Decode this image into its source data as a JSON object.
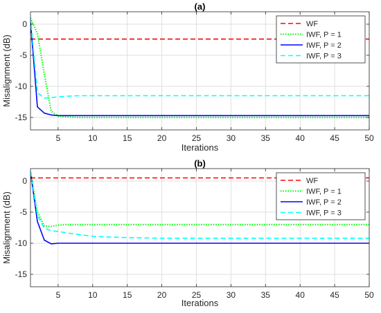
{
  "chart_data": [
    {
      "type": "line",
      "title": "(a)",
      "xlabel": "Iterations",
      "ylabel": "Misalignment (dB)",
      "xlim": [
        1,
        50
      ],
      "ylim": [
        -17,
        2
      ],
      "xticks": [
        5,
        10,
        15,
        20,
        25,
        30,
        35,
        40,
        45,
        50
      ],
      "yticks": [
        0,
        -5,
        -10,
        -15
      ],
      "grid": true,
      "legend_position": "top-right",
      "series": [
        {
          "name": "WF",
          "color": "#ff0000",
          "style": "dashed",
          "x": [
            1,
            50
          ],
          "y": [
            -2.4,
            -2.4
          ]
        },
        {
          "name": "IWF, P = 1",
          "color": "#00ff00",
          "style": "dotted",
          "x": [
            1,
            2,
            3,
            4,
            5,
            6,
            8,
            10,
            20,
            30,
            40,
            50
          ],
          "y": [
            1.0,
            -1.5,
            -8.0,
            -14.0,
            -14.8,
            -14.9,
            -15.0,
            -15.0,
            -15.0,
            -15.0,
            -15.0,
            -15.0
          ]
        },
        {
          "name": "IWF, P = 2",
          "color": "#0000ff",
          "style": "solid",
          "x": [
            1,
            2,
            3,
            4,
            5,
            6,
            8,
            10,
            20,
            30,
            40,
            50
          ],
          "y": [
            0.5,
            -13.3,
            -14.3,
            -14.6,
            -14.7,
            -14.7,
            -14.7,
            -14.7,
            -14.7,
            -14.7,
            -14.7,
            -14.7
          ]
        },
        {
          "name": "IWF, P = 3",
          "color": "#00ffff",
          "style": "dashed",
          "x": [
            1,
            2,
            3,
            4,
            5,
            6,
            8,
            10,
            20,
            30,
            40,
            50
          ],
          "y": [
            1.0,
            -11.0,
            -11.9,
            -11.8,
            -11.7,
            -11.6,
            -11.5,
            -11.5,
            -11.5,
            -11.5,
            -11.5,
            -11.5
          ]
        }
      ]
    },
    {
      "type": "line",
      "title": "(b)",
      "xlabel": "Iterations",
      "ylabel": "Misalignment (dB)",
      "xlim": [
        1,
        50
      ],
      "ylim": [
        -17,
        2
      ],
      "xticks": [
        5,
        10,
        15,
        20,
        25,
        30,
        35,
        40,
        45,
        50
      ],
      "yticks": [
        0,
        -5,
        -10,
        -15
      ],
      "grid": true,
      "legend_position": "top-right",
      "series": [
        {
          "name": "WF",
          "color": "#ff0000",
          "style": "dashed",
          "x": [
            1,
            50
          ],
          "y": [
            0.5,
            0.5
          ]
        },
        {
          "name": "IWF, P = 1",
          "color": "#00ff00",
          "style": "dotted",
          "x": [
            1,
            2,
            3,
            4,
            5,
            6,
            8,
            10,
            20,
            30,
            40,
            50
          ],
          "y": [
            1.5,
            -5.0,
            -7.2,
            -7.3,
            -7.1,
            -7.0,
            -7.0,
            -7.0,
            -7.0,
            -7.0,
            -7.0,
            -7.0
          ]
        },
        {
          "name": "IWF, P = 2",
          "color": "#0000ff",
          "style": "solid",
          "x": [
            1,
            2,
            3,
            4,
            5,
            6,
            8,
            10,
            20,
            30,
            40,
            50
          ],
          "y": [
            1.5,
            -6.5,
            -9.5,
            -10.1,
            -10.0,
            -10.0,
            -10.0,
            -10.0,
            -10.0,
            -10.0,
            -10.0,
            -10.0
          ]
        },
        {
          "name": "IWF, P = 3",
          "color": "#00ffff",
          "style": "dashed",
          "x": [
            1,
            2,
            3,
            4,
            5,
            6,
            8,
            10,
            15,
            20,
            30,
            40,
            50
          ],
          "y": [
            1.5,
            -5.5,
            -7.6,
            -8.0,
            -8.1,
            -8.3,
            -8.6,
            -8.9,
            -9.1,
            -9.2,
            -9.2,
            -9.2,
            -9.2
          ]
        }
      ]
    }
  ]
}
